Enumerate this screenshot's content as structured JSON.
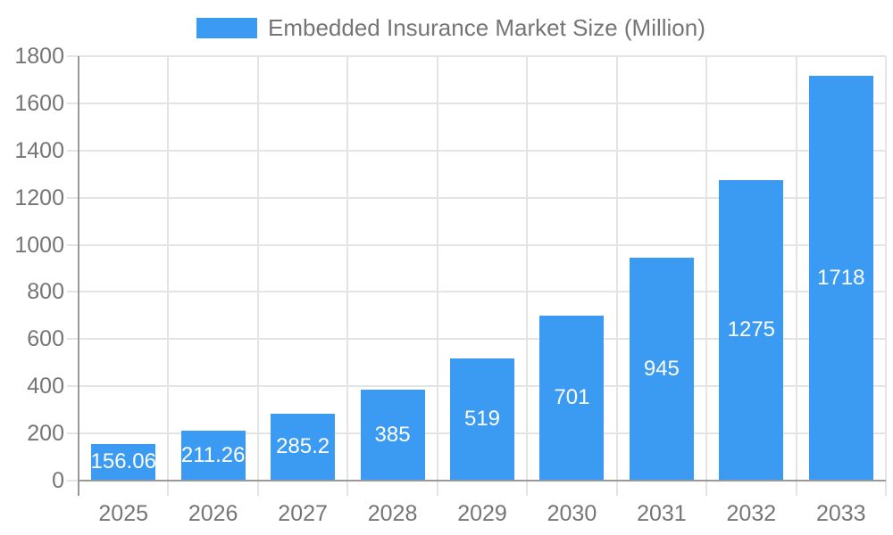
{
  "legend": {
    "label": "Embedded Insurance Market Size (Million)"
  },
  "chart_data": {
    "type": "bar",
    "title": "",
    "categories": [
      "2025",
      "2026",
      "2027",
      "2028",
      "2029",
      "2030",
      "2031",
      "2032",
      "2033"
    ],
    "series": [
      {
        "name": "Embedded Insurance Market Size (Million)",
        "values": [
          156.06,
          211.26,
          285.2,
          385,
          519,
          701,
          945,
          1275,
          1718
        ]
      }
    ],
    "value_labels": [
      "156.06",
      "211.26",
      "285.2",
      "385",
      "519",
      "701",
      "945",
      "1275",
      "1718"
    ],
    "xlabel": "",
    "ylabel": "",
    "ylim": [
      0,
      1800
    ],
    "yticks": [
      0,
      200,
      400,
      600,
      800,
      1000,
      1200,
      1400,
      1600,
      1800
    ],
    "grid": true,
    "legend_position": "top",
    "colors": {
      "bar": "#3b9af2",
      "value_label": "#ffffff",
      "axis_text": "#757575",
      "grid_line": "#e4e4e4",
      "axis_line": "#999999",
      "background": "#ffffff"
    }
  }
}
